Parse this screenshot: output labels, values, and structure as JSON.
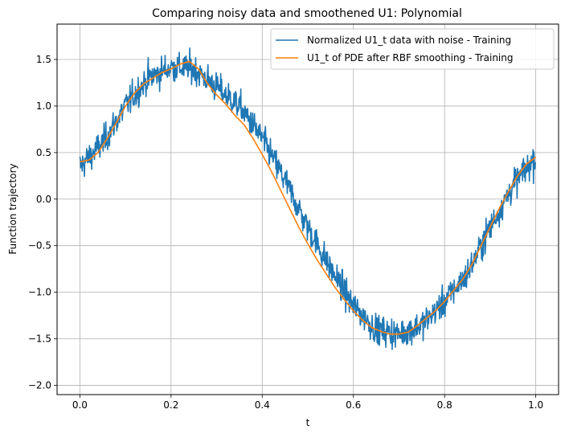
{
  "chart_data": {
    "type": "line",
    "title": "Comparing noisy data and smoothened U1: Polynomial",
    "xlabel": "t",
    "ylabel": "Function trajectory",
    "xlim": [
      -0.05,
      1.05
    ],
    "ylim": [
      -2.1,
      1.88
    ],
    "grid": true,
    "legend_position": "top-right",
    "x_ticks": [
      0.0,
      0.2,
      0.4,
      0.6,
      0.8,
      1.0
    ],
    "x_tick_labels": [
      "0.0",
      "0.2",
      "0.4",
      "0.6",
      "0.8",
      "1.0"
    ],
    "y_ticks": [
      -2.0,
      -1.5,
      -1.0,
      -0.5,
      0.0,
      0.5,
      1.0,
      1.5
    ],
    "y_tick_labels": [
      "−2.0",
      "−1.5",
      "−1.0",
      "−0.5",
      "0.0",
      "0.5",
      "1.0",
      "1.5"
    ],
    "series": [
      {
        "name": "Normalized U1_t data with noise - Training",
        "color": "#1f77b4",
        "noise_std": 0.15,
        "x": [
          0.0,
          0.05,
          0.1,
          0.15,
          0.2,
          0.25,
          0.3,
          0.35,
          0.4,
          0.45,
          0.5,
          0.55,
          0.6,
          0.65,
          0.7,
          0.75,
          0.8,
          0.85,
          0.9,
          0.95,
          1.0
        ],
        "y": [
          0.35,
          0.6,
          1.0,
          1.3,
          1.42,
          1.4,
          1.2,
          1.0,
          0.65,
          0.2,
          -0.3,
          -0.75,
          -1.15,
          -1.4,
          -1.45,
          -1.35,
          -1.1,
          -0.8,
          -0.3,
          0.15,
          0.45
        ]
      },
      {
        "name": "U1_t of PDE after RBF smoothing - Training",
        "color": "#ff7f0e",
        "x": [
          0.0,
          0.02,
          0.04,
          0.06,
          0.08,
          0.1,
          0.12,
          0.14,
          0.16,
          0.18,
          0.2,
          0.22,
          0.24,
          0.26,
          0.28,
          0.3,
          0.32,
          0.34,
          0.36,
          0.38,
          0.4,
          0.42,
          0.44,
          0.46,
          0.48,
          0.5,
          0.52,
          0.54,
          0.56,
          0.58,
          0.6,
          0.62,
          0.64,
          0.66,
          0.68,
          0.7,
          0.72,
          0.74,
          0.76,
          0.78,
          0.8,
          0.82,
          0.84,
          0.86,
          0.88,
          0.9,
          0.92,
          0.94,
          0.96,
          0.98,
          1.0
        ],
        "y": [
          0.4,
          0.42,
          0.5,
          0.65,
          0.82,
          1.0,
          1.14,
          1.24,
          1.3,
          1.36,
          1.4,
          1.45,
          1.48,
          1.4,
          1.24,
          1.12,
          1.02,
          0.9,
          0.8,
          0.65,
          0.48,
          0.3,
          0.1,
          -0.1,
          -0.3,
          -0.48,
          -0.65,
          -0.8,
          -0.95,
          -1.08,
          -1.2,
          -1.3,
          -1.38,
          -1.42,
          -1.45,
          -1.45,
          -1.43,
          -1.36,
          -1.28,
          -1.2,
          -1.1,
          -0.98,
          -0.86,
          -0.7,
          -0.5,
          -0.3,
          -0.1,
          0.08,
          0.25,
          0.38,
          0.45
        ]
      }
    ]
  }
}
